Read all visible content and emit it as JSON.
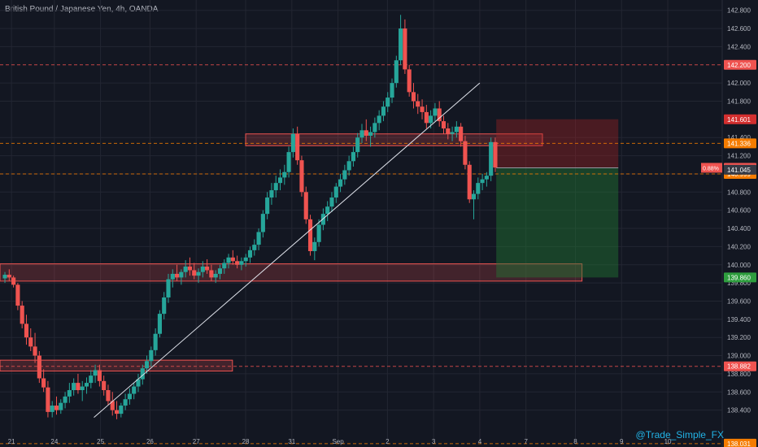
{
  "header": {
    "title": "British Pound / Japanese Yen, 4h, OANDA"
  },
  "watermark": "@Trade_Simple_FX",
  "colors": {
    "background": "#131722",
    "grid": "#232632",
    "bull": "#26a69a",
    "bear": "#ef5350",
    "axis_text": "#b2b5be",
    "trendline": "#e0e3eb",
    "zone_fill": "rgba(239,83,80,0.22)",
    "zone_stroke": "#ef5350",
    "stop_zone": "rgba(178,34,34,0.35)",
    "target_zone": "rgba(34,120,50,0.45)"
  },
  "chart_data": {
    "type": "candlestick",
    "y_axis": {
      "min": 138.03,
      "max": 142.86,
      "ticks": [
        "138.400",
        "138.600",
        "138.800",
        "139.000",
        "139.200",
        "139.400",
        "139.600",
        "139.800",
        "140.000",
        "140.200",
        "140.400",
        "140.600",
        "140.800",
        "141.000",
        "141.200",
        "141.400",
        "141.800",
        "142.000",
        "142.400",
        "142.600",
        "142.800"
      ],
      "tick_values": [
        138.4,
        138.6,
        138.8,
        139.0,
        139.2,
        139.4,
        139.6,
        139.8,
        140.0,
        140.2,
        140.4,
        140.6,
        140.8,
        141.0,
        141.2,
        141.4,
        141.8,
        142.0,
        142.4,
        142.6,
        142.8
      ]
    },
    "x_axis": {
      "labels": [
        "21",
        "24",
        "25",
        "26",
        "27",
        "28",
        "31",
        "Sep",
        "2",
        "3",
        "4",
        "7",
        "8",
        "9",
        "10"
      ],
      "label_bars": [
        2,
        15,
        29,
        44,
        58,
        73,
        87,
        101,
        116,
        130,
        144,
        158,
        173,
        187,
        201
      ]
    },
    "bar_count": 219,
    "price_labels": [
      {
        "text": "142.200",
        "value": 142.2,
        "color": "#ef5350",
        "dashed": true
      },
      {
        "text": "141.601",
        "value": 141.601,
        "color": "#d32f2f",
        "dashed": false
      },
      {
        "text": "141.336",
        "value": 141.336,
        "color": "#f57c00",
        "dashed": true
      },
      {
        "text": "141.067",
        "value": 141.067,
        "color": "#ef5350",
        "dashed": false
      },
      {
        "text": "140.999",
        "value": 140.999,
        "color": "#f57c00",
        "dashed": true
      },
      {
        "text": "141.045",
        "value": 141.045,
        "color": "#363a45",
        "dashed": false
      },
      {
        "text": "139.860",
        "value": 139.86,
        "color": "#2e9e3e",
        "dashed": false
      },
      {
        "text": "138.882",
        "value": 138.882,
        "color": "#ef5350",
        "dashed": true
      },
      {
        "text": "138.031",
        "value": 138.031,
        "color": "#f57c00",
        "dashed": true
      }
    ],
    "pct_label": "0.88%",
    "zones": [
      {
        "bar_start": 0,
        "bar_end": 175,
        "top": 140.01,
        "bottom": 139.82
      },
      {
        "bar_start": 0,
        "bar_end": 69,
        "top": 138.95,
        "bottom": 138.83
      },
      {
        "bar_start": 73,
        "bar_end": 163,
        "top": 141.44,
        "bottom": 141.31
      }
    ],
    "position": {
      "bar_start": 149,
      "bar_end": 186,
      "entry": 141.067,
      "stop": 141.601,
      "target": 139.86
    },
    "trendline": {
      "bar_start": 27,
      "start_value": 138.32,
      "bar_end": 144,
      "end_value": 142.0
    },
    "candles": [
      [
        139.85,
        139.92,
        139.8,
        139.89
      ],
      [
        139.89,
        139.95,
        139.82,
        139.86
      ],
      [
        139.86,
        139.88,
        139.75,
        139.78
      ],
      [
        139.78,
        139.8,
        139.5,
        139.55
      ],
      [
        139.55,
        139.6,
        139.3,
        139.35
      ],
      [
        139.35,
        139.45,
        139.12,
        139.2
      ],
      [
        139.2,
        139.3,
        139.05,
        139.1
      ],
      [
        139.1,
        139.25,
        138.92,
        139.0
      ],
      [
        139.0,
        139.05,
        138.7,
        138.75
      ],
      [
        138.75,
        138.85,
        138.6,
        138.65
      ],
      [
        138.65,
        138.72,
        138.32,
        138.38
      ],
      [
        138.38,
        138.5,
        138.32,
        138.45
      ],
      [
        138.45,
        138.55,
        138.35,
        138.4
      ],
      [
        138.4,
        138.52,
        138.36,
        138.48
      ],
      [
        138.48,
        138.6,
        138.42,
        138.55
      ],
      [
        138.55,
        138.7,
        138.48,
        138.62
      ],
      [
        138.62,
        138.75,
        138.56,
        138.7
      ],
      [
        138.7,
        138.8,
        138.58,
        138.62
      ],
      [
        138.62,
        138.72,
        138.5,
        138.66
      ],
      [
        138.66,
        138.76,
        138.58,
        138.7
      ],
      [
        138.7,
        138.84,
        138.64,
        138.78
      ],
      [
        138.78,
        138.9,
        138.7,
        138.84
      ],
      [
        138.84,
        138.9,
        138.66,
        138.72
      ],
      [
        138.72,
        138.78,
        138.56,
        138.62
      ],
      [
        138.62,
        138.68,
        138.46,
        138.5
      ],
      [
        138.5,
        138.6,
        138.34,
        138.4
      ],
      [
        138.4,
        138.5,
        138.3,
        138.36
      ],
      [
        138.36,
        138.48,
        138.32,
        138.45
      ],
      [
        138.45,
        138.58,
        138.4,
        138.52
      ],
      [
        138.52,
        138.64,
        138.46,
        138.58
      ],
      [
        138.58,
        138.7,
        138.52,
        138.66
      ],
      [
        138.66,
        138.8,
        138.6,
        138.74
      ],
      [
        138.74,
        138.9,
        138.68,
        138.86
      ],
      [
        138.86,
        139.0,
        138.8,
        138.94
      ],
      [
        138.94,
        139.1,
        138.88,
        139.06
      ],
      [
        139.06,
        139.3,
        139.0,
        139.24
      ],
      [
        139.24,
        139.5,
        139.2,
        139.46
      ],
      [
        139.46,
        139.7,
        139.4,
        139.64
      ],
      [
        139.64,
        139.9,
        139.58,
        139.84
      ],
      [
        139.84,
        139.95,
        139.75,
        139.9
      ],
      [
        139.9,
        140.0,
        139.82,
        139.86
      ],
      [
        139.86,
        139.95,
        139.78,
        139.92
      ],
      [
        139.92,
        140.05,
        139.86,
        139.98
      ],
      [
        139.98,
        140.08,
        139.88,
        139.94
      ],
      [
        139.94,
        140.02,
        139.84,
        139.88
      ],
      [
        139.88,
        139.96,
        139.8,
        139.92
      ],
      [
        139.92,
        140.04,
        139.86,
        139.98
      ],
      [
        139.98,
        140.06,
        139.9,
        139.94
      ],
      [
        139.94,
        140.0,
        139.82,
        139.86
      ],
      [
        139.86,
        139.94,
        139.8,
        139.9
      ],
      [
        139.9,
        140.0,
        139.84,
        139.96
      ],
      [
        139.96,
        140.06,
        139.9,
        140.02
      ],
      [
        140.02,
        140.12,
        139.96,
        140.08
      ],
      [
        140.08,
        140.16,
        140.0,
        140.04
      ],
      [
        140.04,
        140.1,
        139.96,
        140.0
      ],
      [
        140.0,
        140.08,
        139.94,
        140.04
      ],
      [
        140.04,
        140.12,
        139.98,
        140.08
      ],
      [
        140.08,
        140.2,
        140.02,
        140.16
      ],
      [
        140.16,
        140.28,
        140.1,
        140.22
      ],
      [
        140.22,
        140.4,
        140.16,
        140.36
      ],
      [
        140.36,
        140.6,
        140.3,
        140.56
      ],
      [
        140.56,
        140.8,
        140.5,
        140.74
      ],
      [
        140.74,
        140.9,
        140.66,
        140.82
      ],
      [
        140.82,
        140.98,
        140.74,
        140.9
      ],
      [
        140.9,
        141.05,
        140.82,
        140.96
      ],
      [
        140.96,
        141.1,
        140.88,
        141.02
      ],
      [
        141.02,
        141.3,
        140.96,
        141.24
      ],
      [
        141.24,
        141.5,
        141.18,
        141.44
      ],
      [
        141.44,
        141.52,
        141.1,
        141.15
      ],
      [
        141.15,
        141.2,
        140.75,
        140.8
      ],
      [
        140.8,
        140.86,
        140.45,
        140.5
      ],
      [
        140.5,
        140.55,
        140.1,
        140.15
      ],
      [
        140.15,
        140.3,
        140.05,
        140.25
      ],
      [
        140.25,
        140.5,
        140.2,
        140.44
      ],
      [
        140.44,
        140.62,
        140.38,
        140.56
      ],
      [
        140.56,
        140.7,
        140.48,
        140.64
      ],
      [
        140.64,
        140.8,
        140.58,
        140.74
      ],
      [
        140.74,
        140.9,
        140.68,
        140.86
      ],
      [
        140.86,
        141.0,
        140.8,
        140.94
      ],
      [
        140.94,
        141.1,
        140.88,
        141.04
      ],
      [
        141.04,
        141.2,
        140.98,
        141.14
      ],
      [
        141.14,
        141.3,
        141.08,
        141.24
      ],
      [
        141.24,
        141.45,
        141.18,
        141.4
      ],
      [
        141.4,
        141.55,
        141.34,
        141.48
      ],
      [
        141.48,
        141.6,
        141.36,
        141.42
      ],
      [
        141.42,
        141.52,
        141.3,
        141.46
      ],
      [
        141.46,
        141.62,
        141.4,
        141.56
      ],
      [
        141.56,
        141.7,
        141.48,
        141.64
      ],
      [
        141.64,
        141.8,
        141.58,
        141.74
      ],
      [
        141.74,
        141.9,
        141.68,
        141.84
      ],
      [
        141.84,
        142.05,
        141.78,
        142.0
      ],
      [
        142.0,
        142.3,
        141.95,
        142.25
      ],
      [
        142.25,
        142.75,
        142.2,
        142.6
      ],
      [
        142.6,
        142.7,
        142.1,
        142.15
      ],
      [
        142.15,
        142.2,
        141.85,
        141.9
      ],
      [
        141.9,
        142.0,
        141.72,
        141.8
      ],
      [
        141.8,
        141.88,
        141.66,
        141.74
      ],
      [
        141.74,
        141.82,
        141.6,
        141.68
      ],
      [
        141.68,
        141.76,
        141.5,
        141.56
      ],
      [
        141.56,
        141.7,
        141.5,
        141.64
      ],
      [
        141.64,
        141.78,
        141.58,
        141.72
      ],
      [
        141.72,
        141.8,
        141.52,
        141.58
      ],
      [
        141.58,
        141.64,
        141.44,
        141.5
      ],
      [
        141.5,
        141.56,
        141.38,
        141.44
      ],
      [
        141.44,
        141.52,
        141.36,
        141.46
      ],
      [
        141.46,
        141.58,
        141.4,
        141.52
      ],
      [
        141.52,
        141.56,
        141.3,
        141.36
      ],
      [
        141.36,
        141.42,
        141.05,
        141.1
      ],
      [
        141.1,
        141.14,
        140.68,
        140.72
      ],
      [
        140.72,
        140.82,
        140.5,
        140.78
      ],
      [
        140.78,
        140.96,
        140.72,
        140.9
      ],
      [
        140.9,
        141.0,
        140.82,
        140.94
      ],
      [
        140.94,
        141.02,
        140.86,
        140.98
      ],
      [
        140.98,
        141.4,
        140.92,
        141.35
      ],
      [
        141.35,
        141.4,
        141.02,
        141.07
      ]
    ]
  }
}
